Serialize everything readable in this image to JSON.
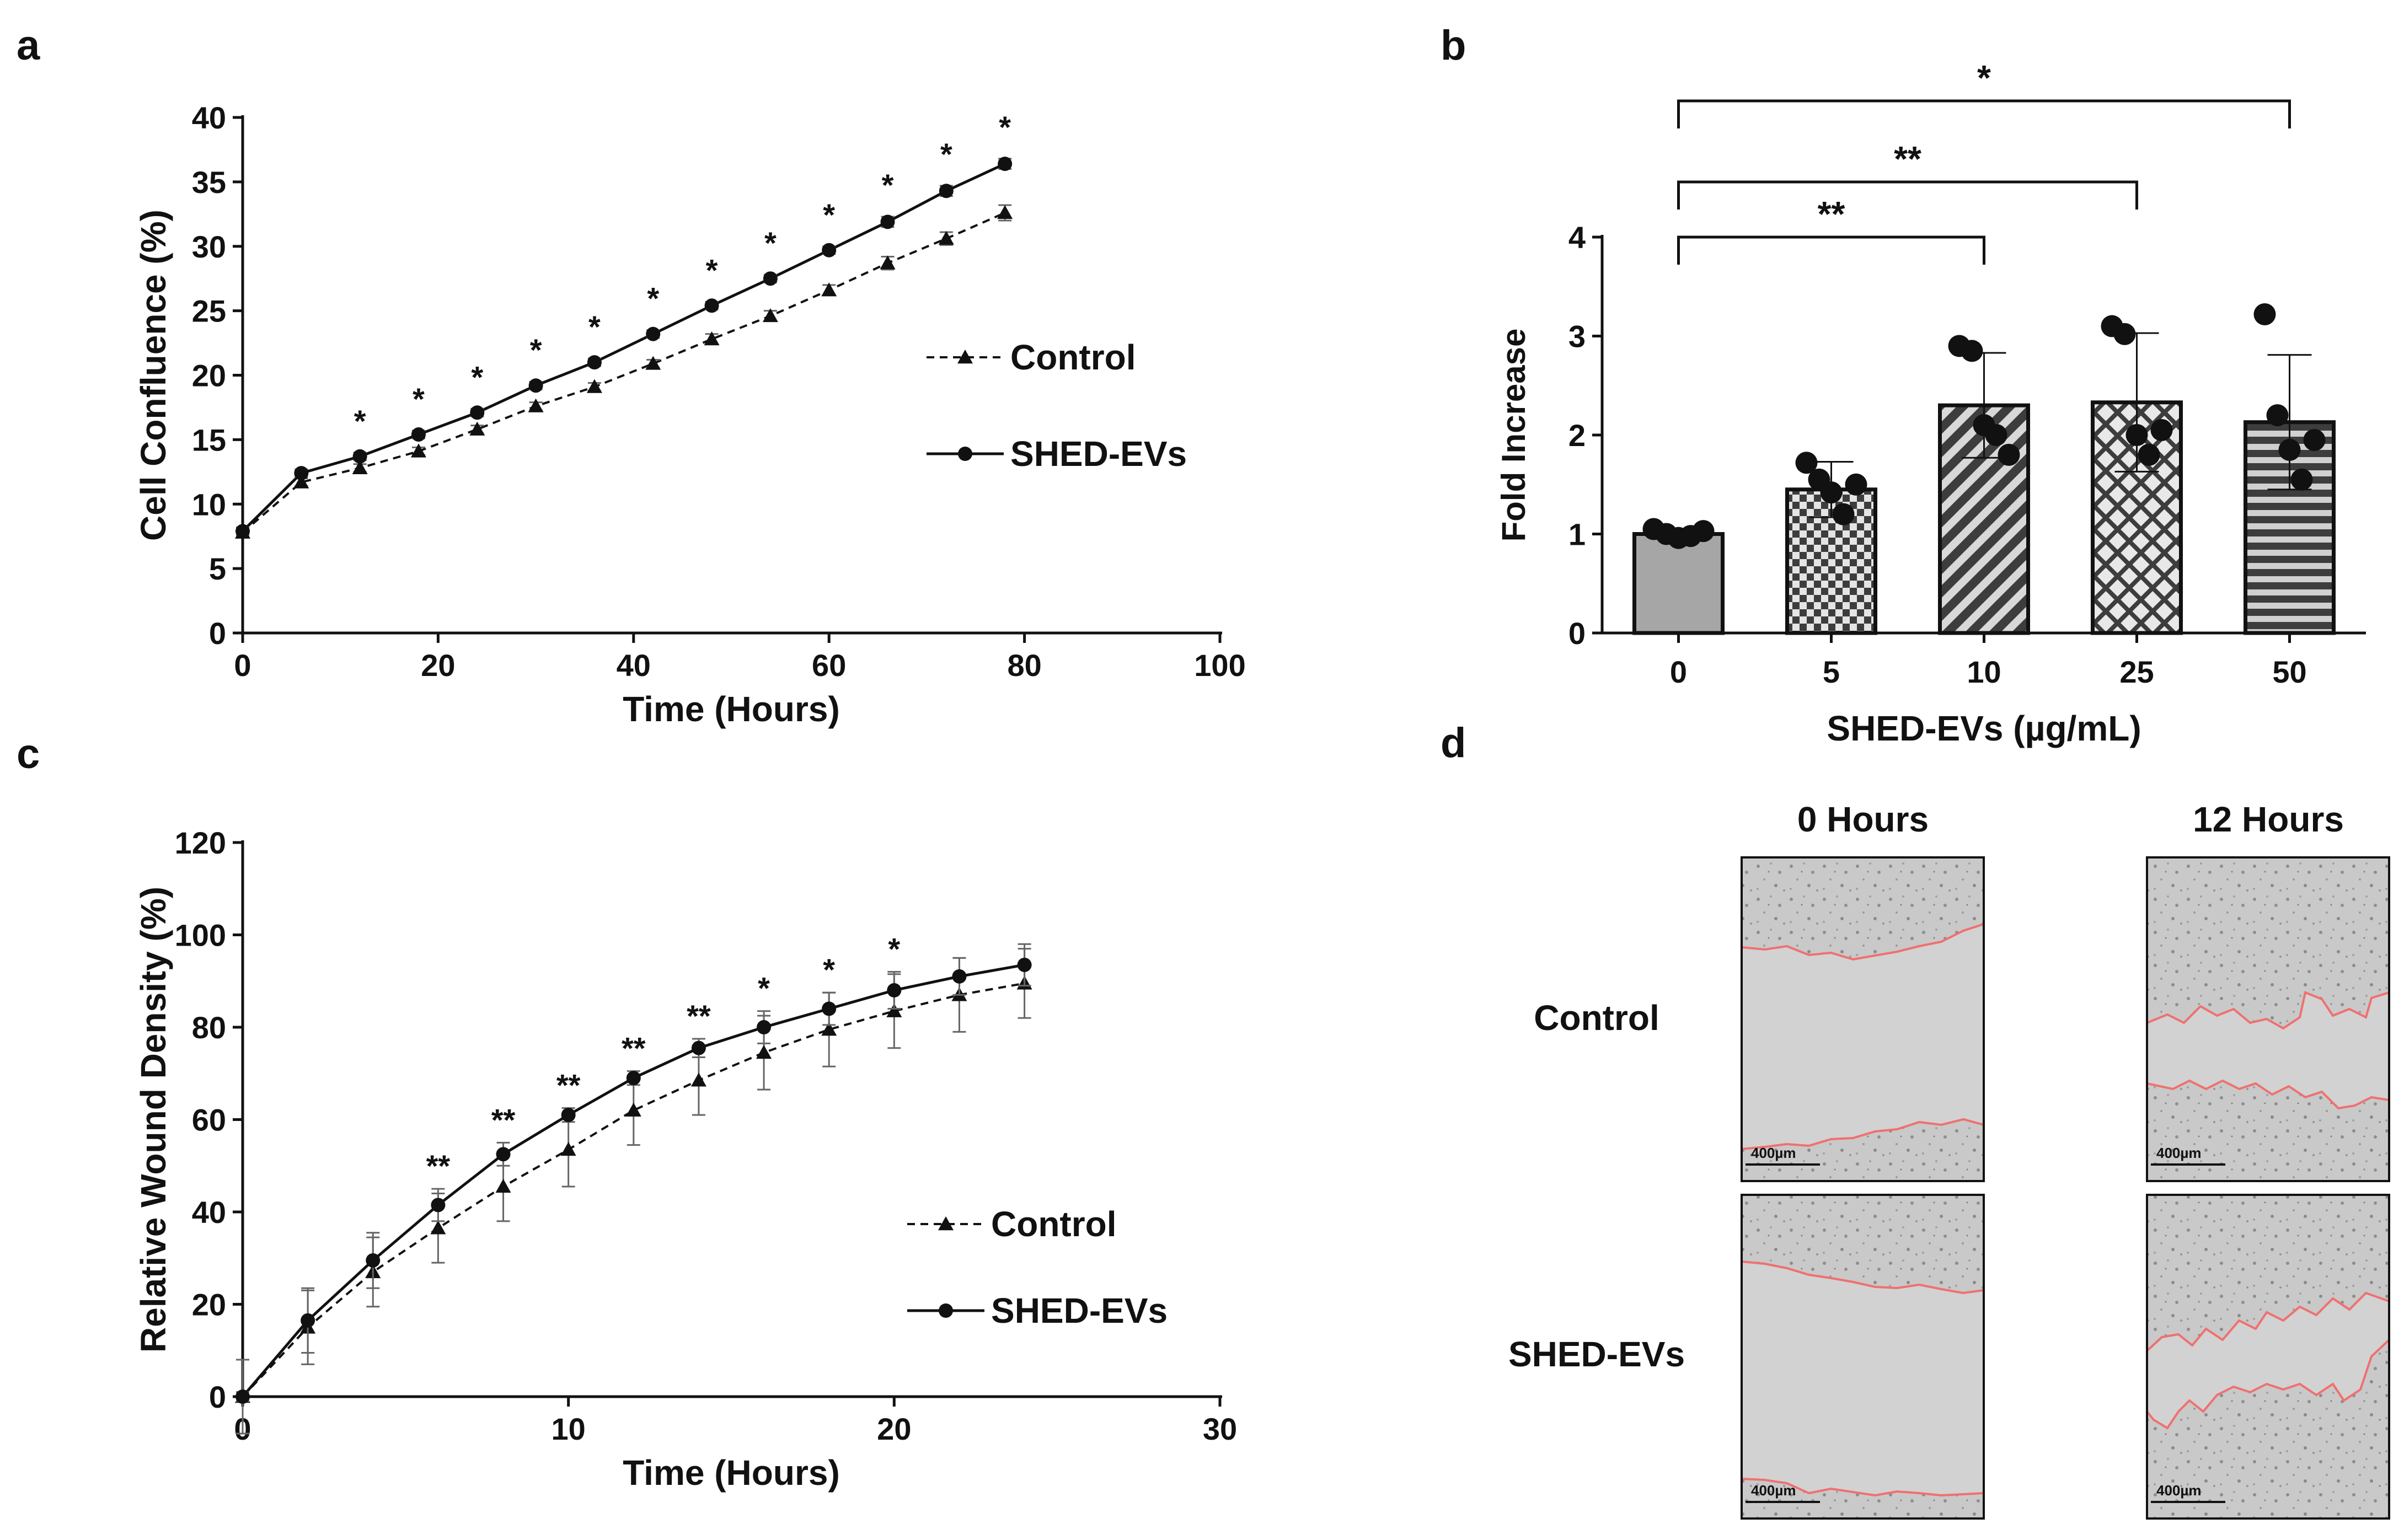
{
  "colors": {
    "ink": "#111111",
    "bar_fill": "#a6a6a6",
    "bar_dark": "#3d3d3d",
    "bar_light": "#e4e4e4",
    "scratch_bg": "#c8c8c8",
    "wound_edge": "#f07070"
  },
  "panels": {
    "a": {
      "letter": "a"
    },
    "b": {
      "letter": "b"
    },
    "c": {
      "letter": "c"
    },
    "d": {
      "letter": "d"
    }
  },
  "panel_d": {
    "col_labels": [
      "0 Hours",
      "12 Hours"
    ],
    "row_labels": [
      "Control",
      "SHED-EVs"
    ],
    "scale_bar_label": "400µm"
  },
  "chart_data": [
    {
      "id": "a",
      "type": "line",
      "xlabel": "Time (Hours)",
      "ylabel": "Cell Confluence (%)",
      "xlim": [
        0,
        100
      ],
      "ylim": [
        0,
        40
      ],
      "xticks": [
        0,
        20,
        40,
        60,
        80,
        100
      ],
      "yticks": [
        0,
        5,
        10,
        15,
        20,
        25,
        30,
        35,
        40
      ],
      "x": [
        0,
        6,
        12,
        18,
        24,
        30,
        36,
        42,
        48,
        54,
        60,
        66,
        72,
        78
      ],
      "series": [
        {
          "name": "Control",
          "marker": "triangle",
          "dash": true,
          "values": [
            7.8,
            11.7,
            12.8,
            14.1,
            15.8,
            17.6,
            19.1,
            20.9,
            22.8,
            24.6,
            26.6,
            28.7,
            30.6,
            32.6
          ],
          "errors": [
            0.3,
            0.3,
            0.3,
            0.3,
            0.3,
            0.3,
            0.3,
            0.3,
            0.4,
            0.4,
            0.4,
            0.5,
            0.5,
            0.6
          ]
        },
        {
          "name": "SHED-EVs",
          "marker": "circle",
          "dash": false,
          "values": [
            7.9,
            12.4,
            13.7,
            15.4,
            17.1,
            19.2,
            21.0,
            23.2,
            25.4,
            27.5,
            29.7,
            31.9,
            34.3,
            36.4
          ],
          "errors": [
            0.3,
            0.3,
            0.3,
            0.3,
            0.3,
            0.3,
            0.3,
            0.3,
            0.3,
            0.3,
            0.3,
            0.4,
            0.4,
            0.4
          ]
        }
      ],
      "significance": [
        {
          "x": 12,
          "label": "*"
        },
        {
          "x": 18,
          "label": "*"
        },
        {
          "x": 24,
          "label": "*"
        },
        {
          "x": 30,
          "label": "*"
        },
        {
          "x": 36,
          "label": "*"
        },
        {
          "x": 42,
          "label": "*"
        },
        {
          "x": 48,
          "label": "*"
        },
        {
          "x": 54,
          "label": "*"
        },
        {
          "x": 60,
          "label": "*"
        },
        {
          "x": 66,
          "label": "*"
        },
        {
          "x": 72,
          "label": "*"
        },
        {
          "x": 78,
          "label": "*"
        }
      ],
      "legend": [
        "Control",
        "SHED-EVs"
      ],
      "legend_position": "right"
    },
    {
      "id": "b",
      "type": "bar",
      "xlabel": "SHED-EVs (µg/mL)",
      "ylabel": "Fold Increase",
      "ylim": [
        0,
        4
      ],
      "yticks": [
        0,
        1,
        2,
        3,
        4
      ],
      "categories": [
        "0",
        "5",
        "10",
        "25",
        "50"
      ],
      "values": [
        1.0,
        1.45,
        2.3,
        2.33,
        2.13
      ],
      "errors": [
        0.05,
        0.28,
        0.53,
        0.7,
        0.68
      ],
      "patterns": [
        "solid",
        "checker",
        "diagonal",
        "crosshatch",
        "horizontal"
      ],
      "points": [
        [
          1.05,
          1.0,
          0.96,
          0.98,
          1.03
        ],
        [
          1.72,
          1.55,
          1.42,
          1.2,
          1.5
        ],
        [
          2.9,
          2.85,
          2.1,
          2.0,
          1.8
        ],
        [
          3.1,
          3.02,
          2.0,
          1.8,
          2.05
        ],
        [
          3.22,
          2.2,
          1.85,
          1.55,
          1.95
        ]
      ],
      "comparisons": [
        {
          "from": "0",
          "to": "10",
          "label": "**"
        },
        {
          "from": "0",
          "to": "25",
          "label": "**"
        },
        {
          "from": "0",
          "to": "50",
          "label": "*"
        }
      ]
    },
    {
      "id": "c",
      "type": "line",
      "xlabel": "Time (Hours)",
      "ylabel": "Relative Wound Density (%)",
      "xlim": [
        0,
        30
      ],
      "ylim": [
        0,
        120
      ],
      "xticks": [
        0,
        10,
        20,
        30
      ],
      "yticks": [
        0,
        20,
        40,
        60,
        80,
        100,
        120
      ],
      "x": [
        0,
        2,
        4,
        6,
        8,
        10,
        12,
        14,
        16,
        18,
        20,
        22,
        24
      ],
      "series": [
        {
          "name": "Control",
          "marker": "triangle",
          "dash": true,
          "values": [
            0,
            15,
            27,
            36.5,
            45.5,
            53.5,
            62,
            68.5,
            74.5,
            79.5,
            83.5,
            87,
            89.5
          ],
          "errors": [
            8,
            8,
            7.5,
            7.5,
            7.5,
            8,
            7.5,
            7.5,
            8,
            8,
            8,
            8,
            7.5
          ]
        },
        {
          "name": "SHED-EVs",
          "marker": "circle",
          "dash": false,
          "values": [
            0,
            16.5,
            29.5,
            41.5,
            52.5,
            61,
            69,
            75.5,
            80,
            84,
            88,
            91,
            93.5
          ],
          "errors": [
            1,
            7,
            6,
            3.5,
            2.5,
            1.5,
            1.5,
            2,
            3.5,
            3.5,
            4,
            4,
            4.5
          ]
        }
      ],
      "significance": [
        {
          "x": 6,
          "label": "**"
        },
        {
          "x": 8,
          "label": "**"
        },
        {
          "x": 10,
          "label": "**"
        },
        {
          "x": 12,
          "label": "**"
        },
        {
          "x": 14,
          "label": "**"
        },
        {
          "x": 16,
          "label": "*"
        },
        {
          "x": 18,
          "label": "*"
        },
        {
          "x": 20,
          "label": "*"
        }
      ],
      "legend": [
        "Control",
        "SHED-EVs"
      ],
      "legend_position": "bottom-right"
    }
  ]
}
